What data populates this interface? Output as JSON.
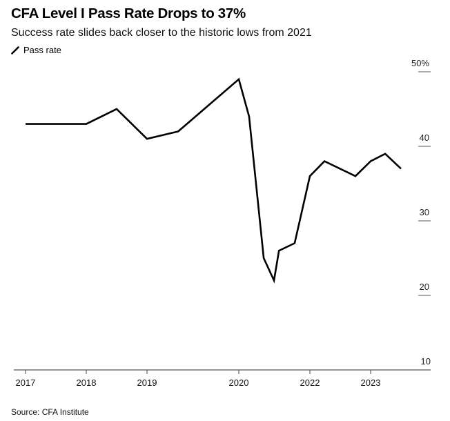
{
  "header": {
    "title": "CFA Level I Pass Rate Drops to 37%",
    "subtitle": "Success rate slides back closer to the historic lows from 2021"
  },
  "legend": {
    "items": [
      {
        "label": "Pass rate",
        "icon": "line-swatch-icon",
        "color": "#000000"
      }
    ]
  },
  "footer": {
    "source": "Source: CFA Institute"
  },
  "chart_data": {
    "type": "line",
    "title": "CFA Level I Pass Rate Drops to 37%",
    "subtitle": "Success rate slides back closer to the historic lows from 2021",
    "xlabel": "",
    "ylabel": "",
    "ylim": [
      10,
      50
    ],
    "y_ticks": [
      {
        "value": 50,
        "label": "50%"
      },
      {
        "value": 40,
        "label": "40"
      },
      {
        "value": 30,
        "label": "30"
      },
      {
        "value": 20,
        "label": "20"
      },
      {
        "value": 10,
        "label": "10"
      }
    ],
    "x_ticks": [
      {
        "value": 2017,
        "label": "2017"
      },
      {
        "value": 2018,
        "label": "2018"
      },
      {
        "value": 2019,
        "label": "2019"
      },
      {
        "value": 2020,
        "label": "2020"
      },
      {
        "value": 2022,
        "label": "2022"
      },
      {
        "value": 2023,
        "label": "2023"
      }
    ],
    "grid": false,
    "legend_position": "top-left",
    "y_axis_side": "right",
    "series": [
      {
        "name": "Pass rate",
        "color": "#000000",
        "x": [
          2017.0,
          2018.0,
          2018.5,
          2019.0,
          2019.34,
          2020.0,
          2020.29,
          2020.7,
          2020.99,
          2021.13,
          2021.57,
          2022.0,
          2022.24,
          2022.75,
          2023.0,
          2023.24,
          2023.5
        ],
        "values": [
          43,
          43,
          45,
          41,
          42,
          49,
          44,
          25,
          22,
          26,
          27,
          36,
          38,
          36,
          38,
          39,
          37
        ]
      }
    ]
  }
}
